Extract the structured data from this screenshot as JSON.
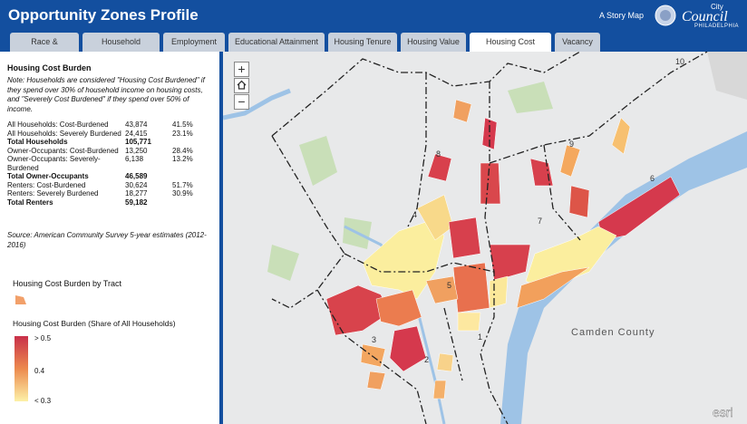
{
  "header": {
    "title": "Opportunity Zones Profile",
    "story_map": "A Story Map",
    "logo": {
      "line1": "City",
      "line2": "Council",
      "line3": "PHILADELPHIA"
    }
  },
  "tabs": [
    {
      "label": "Race & Ethnicity",
      "active": false
    },
    {
      "label": "Household Income",
      "active": false
    },
    {
      "label": "Employment",
      "active": false
    },
    {
      "label": "Educational Attainment",
      "active": false
    },
    {
      "label": "Housing Tenure",
      "active": false
    },
    {
      "label": "Housing Value",
      "active": false
    },
    {
      "label": "Housing Cost Burden",
      "active": true
    },
    {
      "label": "Vacancy",
      "active": false
    }
  ],
  "panel": {
    "title": "Housing Cost Burden",
    "note": "Note: Households are considered \"Housing Cost Burdened\" if they spend over 30% of household income on housing costs, and \"Severely Cost Burdened\" if they spend over 50% of income.",
    "table": {
      "rows": [
        {
          "cells": [
            "All Households: Cost-Burdened",
            "43,874",
            "41.5%"
          ],
          "bold": false
        },
        {
          "cells": [
            "All Households: Severely Burdened",
            "24,415",
            "23.1%"
          ],
          "bold": false
        },
        {
          "cells": [
            "Total Households",
            "105,771",
            ""
          ],
          "bold": true
        },
        {
          "cells": [
            "Owner-Occupants: Cost-Burdened",
            "13,250",
            "28.4%"
          ],
          "bold": false
        },
        {
          "cells": [
            "Owner-Occupants: Severely-Burdened",
            "6,138",
            "13.2%"
          ],
          "bold": false
        },
        {
          "cells": [
            "Total Owner-Occupants",
            "46,589",
            ""
          ],
          "bold": true
        },
        {
          "cells": [
            "Renters: Cost-Burdened",
            "30,624",
            "51.7%"
          ],
          "bold": false
        },
        {
          "cells": [
            "Renters: Severely Burdened",
            "18,277",
            "30.9%"
          ],
          "bold": false
        },
        {
          "cells": [
            "Total Renters",
            "59,182",
            ""
          ],
          "bold": true
        }
      ]
    },
    "source": "Source: American Community Survey 5-year estimates (2012-2016)",
    "legend": {
      "layer_title": "Housing Cost Burden by Tract",
      "title": "Housing Cost Burden (Share of All Households)",
      "labels": [
        "> 0.5",
        "0.4",
        "< 0.3"
      ]
    }
  },
  "map": {
    "zoom_in": "+",
    "zoom_out": "−",
    "district_labels": [
      "1",
      "2",
      "3",
      "4",
      "5",
      "6",
      "7",
      "8",
      "9",
      "10"
    ],
    "place_label": "Camden County",
    "attribution": "esri"
  }
}
